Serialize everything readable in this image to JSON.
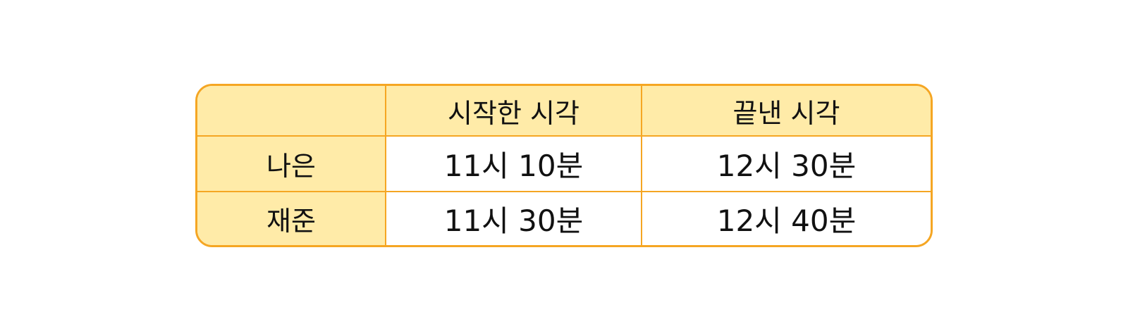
{
  "table": {
    "headers": [
      "",
      "시작한 시각",
      "끝낸 시각"
    ],
    "rows": [
      {
        "name": "나은",
        "start": "11시 10분",
        "end": "12시 30분"
      },
      {
        "name": "재준",
        "start": "11시 30분",
        "end": "12시 40분"
      }
    ]
  },
  "colors": {
    "border": "#F5A623",
    "header_fill": "#FFEBA8",
    "cell_fill": "#FFFFFF",
    "text": "#111111"
  }
}
